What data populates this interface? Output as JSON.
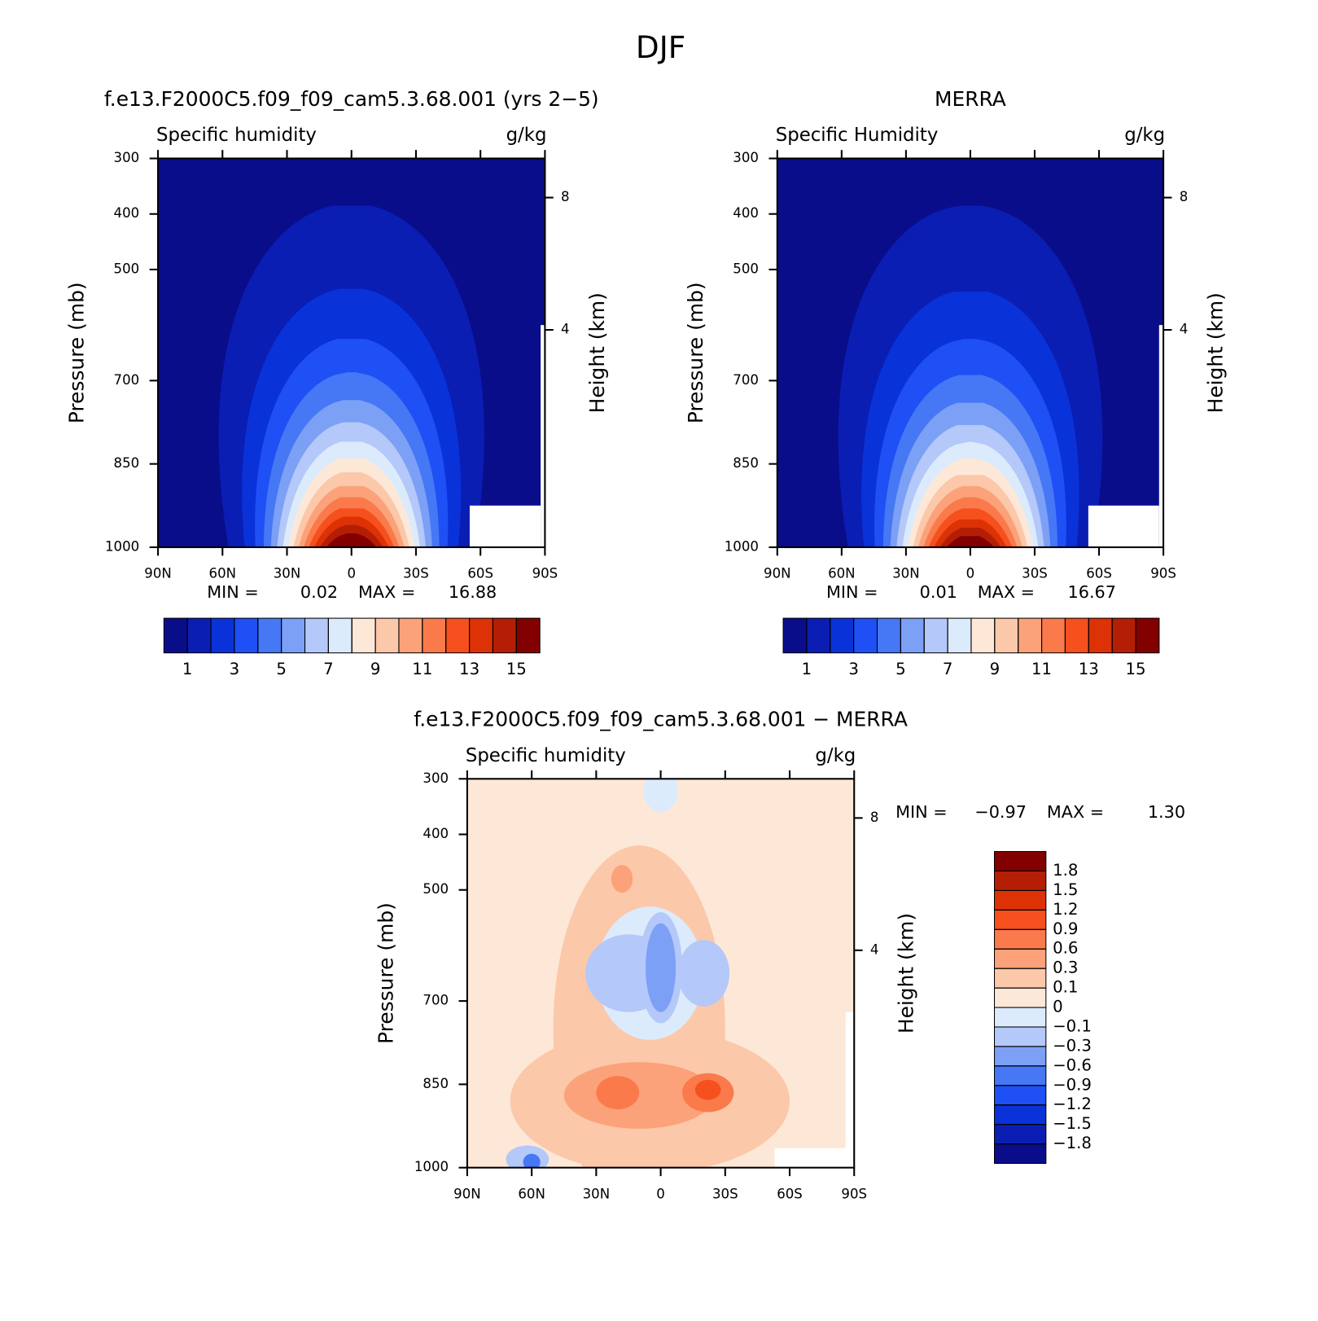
{
  "title": "DJF",
  "chart_data": [
    {
      "type": "contour",
      "title": "f.e13.F2000C5.f09_f09_cam5.3.68.001 (yrs 2−5)",
      "subtitle": "Specific humidity",
      "units": "g/kg",
      "ylabel": "Pressure (mb)",
      "y2label": "Height (km)",
      "xlim": [
        90,
        -90
      ],
      "xticks": [
        {
          "value": 90,
          "label": "90N"
        },
        {
          "value": 60,
          "label": "60N"
        },
        {
          "value": 30,
          "label": "30N"
        },
        0,
        {
          "value": -30,
          "label": "30S"
        },
        {
          "value": -60,
          "label": "60S"
        },
        {
          "value": -90,
          "label": "90S"
        }
      ],
      "ylim": [
        1000,
        300
      ],
      "yticks": [
        300,
        400,
        500,
        700,
        850,
        1000
      ],
      "y2lim": [
        0,
        9.7
      ],
      "y2ticks": [
        4,
        8
      ],
      "y2scale": "log-pressure",
      "stats": [
        {
          "label": "MIN =",
          "value": 0.02
        },
        {
          "label": "MAX =",
          "value": 16.88
        }
      ],
      "levels": [
        1,
        2,
        3,
        4,
        5,
        6,
        7,
        8,
        9,
        10,
        11,
        12,
        13,
        14,
        15
      ],
      "cbticks": [
        1,
        3,
        5,
        7,
        9,
        11,
        13,
        15
      ],
      "colors": [
        "#0a0d8a",
        "#0a1eb4",
        "#0a32d9",
        "#1e50f5",
        "#4677f5",
        "#7ba0f5",
        "#b4c8f9",
        "#dcebfc",
        "#fde8d8",
        "#fcc8aa",
        "#fca27a",
        "#fa7a4b",
        "#f5501e",
        "#dc3205",
        "#b41e05",
        "#820000"
      ]
    },
    {
      "type": "contour",
      "title": "MERRA",
      "subtitle": "Specific Humidity",
      "units": "g/kg",
      "ylabel": "Pressure (mb)",
      "y2label": "Height (km)",
      "xlim": [
        90,
        -90
      ],
      "xticks": [
        {
          "value": 90,
          "label": "90N"
        },
        {
          "value": 60,
          "label": "60N"
        },
        {
          "value": 30,
          "label": "30N"
        },
        0,
        {
          "value": -30,
          "label": "30S"
        },
        {
          "value": -60,
          "label": "60S"
        },
        {
          "value": -90,
          "label": "90S"
        }
      ],
      "ylim": [
        1000,
        300
      ],
      "yticks": [
        300,
        400,
        500,
        700,
        850,
        1000
      ],
      "y2lim": [
        0,
        9.7
      ],
      "y2ticks": [
        4,
        8
      ],
      "y2scale": "log-pressure",
      "stats": [
        {
          "label": "MIN =",
          "value": 0.01
        },
        {
          "label": "MAX =",
          "value": 16.67
        }
      ],
      "levels": [
        1,
        2,
        3,
        4,
        5,
        6,
        7,
        8,
        9,
        10,
        11,
        12,
        13,
        14,
        15
      ],
      "cbticks": [
        1,
        3,
        5,
        7,
        9,
        11,
        13,
        15
      ],
      "colors": [
        "#0a0d8a",
        "#0a1eb4",
        "#0a32d9",
        "#1e50f5",
        "#4677f5",
        "#7ba0f5",
        "#b4c8f9",
        "#dcebfc",
        "#fde8d8",
        "#fcc8aa",
        "#fca27a",
        "#fa7a4b",
        "#f5501e",
        "#dc3205",
        "#b41e05",
        "#820000"
      ]
    },
    {
      "type": "difference",
      "title": "f.e13.F2000C5.f09_f09_cam5.3.68.001 − MERRA",
      "subtitle": "Specific humidity",
      "units": "g/kg",
      "ylabel": "Pressure (mb)",
      "y2label": "Height (km)",
      "xlim": [
        90,
        -90
      ],
      "xticks": [
        {
          "value": 90,
          "label": "90N"
        },
        {
          "value": 60,
          "label": "60N"
        },
        {
          "value": 30,
          "label": "30N"
        },
        0,
        {
          "value": -30,
          "label": "30S"
        },
        {
          "value": -60,
          "label": "60S"
        },
        {
          "value": -90,
          "label": "90S"
        }
      ],
      "ylim": [
        1000,
        300
      ],
      "yticks": [
        300,
        400,
        500,
        700,
        850,
        1000
      ],
      "y2lim": [
        0,
        9.7
      ],
      "y2ticks": [
        4,
        8
      ],
      "y2scale": "log-pressure",
      "stats": [
        {
          "label": "MIN =",
          "value": {
            "value": -0.97,
            "label": "−0.97"
          }
        },
        {
          "label": "MAX =",
          "value": {
            "value": 1.3,
            "label": "1.30"
          }
        }
      ],
      "levels": [
        {
          "value": -1.8,
          "label": "−1.8"
        },
        {
          "value": -1.5,
          "label": "−1.5"
        },
        {
          "value": -1.2,
          "label": "−1.2"
        },
        {
          "value": -0.9,
          "label": "−0.9"
        },
        {
          "value": -0.6,
          "label": "−0.6"
        },
        {
          "value": -0.3,
          "label": "−0.3"
        },
        {
          "value": -0.1,
          "label": "−0.1"
        },
        0,
        0.1,
        0.3,
        0.6,
        0.9,
        1.2,
        1.5,
        1.8
      ],
      "colors": [
        "#0a0d8a",
        "#0a1eb4",
        "#0a32d9",
        "#1e50f5",
        "#4677f5",
        "#7ba0f5",
        "#b4c8f9",
        "#dcebfc",
        "#fde8d8",
        "#fcc8aa",
        "#fca27a",
        "#fa7a4b",
        "#f5501e",
        "#dc3205",
        "#b41e05",
        "#820000"
      ]
    }
  ]
}
